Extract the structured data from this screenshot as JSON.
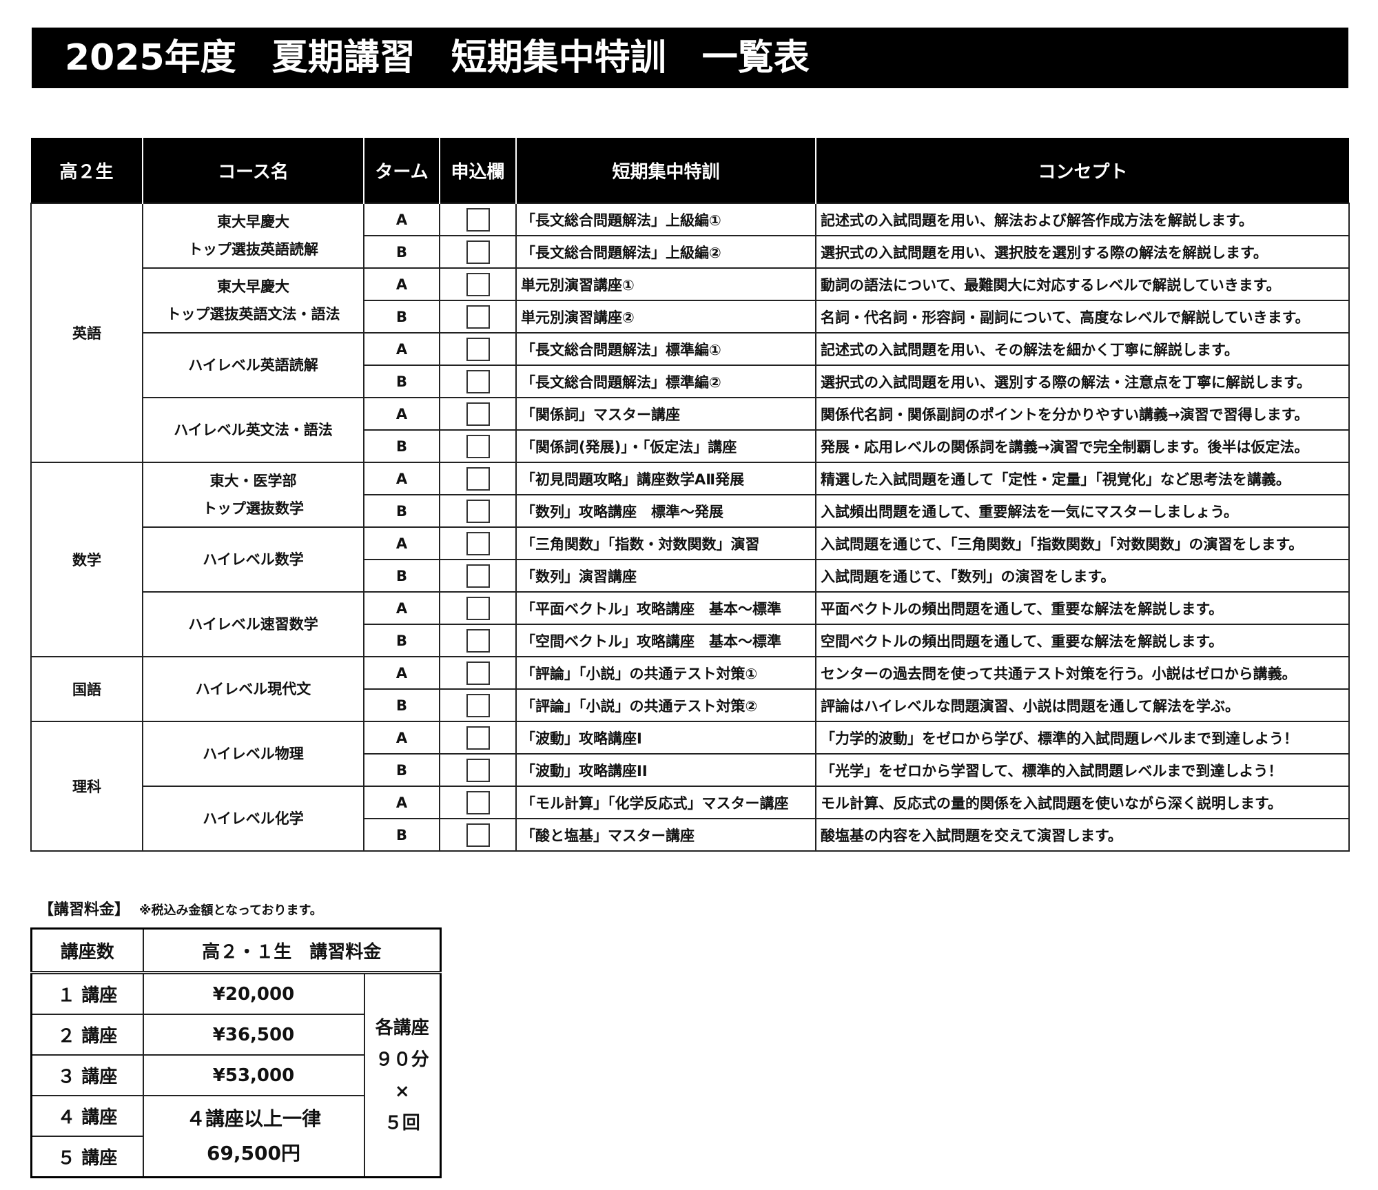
{
  "title": "2025年度　夏期講習　短期集中特訓　一覧表",
  "table": {
    "headers": [
      "高２生",
      "コース名",
      "ターム",
      "申込欄",
      "短期集中特訓",
      "コンセプト"
    ],
    "subjects": [
      {
        "name": "英語",
        "courses": [
          {
            "name": "東大早慶大\nトップ選抜英語読解",
            "terms": [
              {
                "term": "A",
                "lecture": "「長文総合問題解法」上級編①",
                "concept": "記述式の入試問題を用い、解法および解答作成方法を解説します。"
              },
              {
                "term": "B",
                "lecture": "「長文総合問題解法」上級編②",
                "concept": "選択式の入試問題を用い、選択肢を選別する際の解法を解説します。"
              }
            ]
          },
          {
            "name": "東大早慶大\nトップ選抜英語文法・語法",
            "terms": [
              {
                "term": "A",
                "lecture": " 単元別演習講座①",
                "concept": "動詞の語法について、最難関大に対応するレベルで解説していきます。"
              },
              {
                "term": "B",
                "lecture": " 単元別演習講座②",
                "concept": "名詞・代名詞・形容詞・副詞について、高度なレベルで解説していきます。"
              }
            ]
          },
          {
            "name": "ハイレベル英語読解",
            "terms": [
              {
                "term": "A",
                "lecture": "「長文総合問題解法」標準編①",
                "concept": "記述式の入試問題を用い、その解法を細かく丁寧に解説します。"
              },
              {
                "term": "B",
                "lecture": "「長文総合問題解法」標準編②",
                "concept": "選択式の入試問題を用い、選別する際の解法・注意点を丁寧に解説します。"
              }
            ]
          },
          {
            "name": "ハイレベル英文法・語法",
            "terms": [
              {
                "term": "A",
                "lecture": "「関係詞」マスター講座",
                "concept": "関係代名詞・関係副詞のポイントを分かりやすい講義→演習で習得します。"
              },
              {
                "term": "B",
                "lecture": "「関係詞(発展)」・「仮定法」講座",
                "concept": "発展・応用レベルの関係詞を講義→演習で完全制覇します。後半は仮定法。"
              }
            ]
          }
        ]
      },
      {
        "name": "数学",
        "courses": [
          {
            "name": "東大・医学部\nトップ選抜数学",
            "terms": [
              {
                "term": "A",
                "lecture": "「初見問題攻略」講座数学AⅡ発展",
                "concept": "精選した入試問題を通して「定性・定量」「視覚化」など思考法を講義。"
              },
              {
                "term": "B",
                "lecture": "「数列」攻略講座　標準～発展",
                "concept": "入試頻出問題を通して、重要解法を一気にマスターしましょう。"
              }
            ]
          },
          {
            "name": "ハイレベル数学",
            "terms": [
              {
                "term": "A",
                "lecture": "「三角関数」「指数・対数関数」演習",
                "concept": "入試問題を通じて、「三角関数」「指数関数」「対数関数」の演習をします。"
              },
              {
                "term": "B",
                "lecture": "「数列」演習講座",
                "concept": "入試問題を通じて、「数列」の演習をします。"
              }
            ]
          },
          {
            "name": "ハイレベル速習数学",
            "terms": [
              {
                "term": "A",
                "lecture": "「平面ベクトル」攻略講座　基本～標準",
                "concept": "平面ベクトルの頻出問題を通して、重要な解法を解説します。"
              },
              {
                "term": "B",
                "lecture": "「空間ベクトル」攻略講座　基本～標準",
                "concept": "空間ベクトルの頻出問題を通して、重要な解法を解説します。"
              }
            ]
          }
        ]
      },
      {
        "name": "国語",
        "courses": [
          {
            "name": "ハイレベル現代文",
            "terms": [
              {
                "term": "A",
                "lecture": "「評論」「小説」の共通テスト対策①",
                "concept": "センターの過去問を使って共通テスト対策を行う。小説はゼロから講義。"
              },
              {
                "term": "B",
                "lecture": "「評論」「小説」の共通テスト対策②",
                "concept": "評論はハイレベルな問題演習、小説は問題を通して解法を学ぶ。"
              }
            ]
          }
        ]
      },
      {
        "name": "理科",
        "courses": [
          {
            "name": "ハイレベル物理",
            "terms": [
              {
                "term": "A",
                "lecture": "「波動」攻略講座I",
                "concept": "「力学的波動」をゼロから学び、標準的入試問題レベルまで到達しよう！"
              },
              {
                "term": "B",
                "lecture": "「波動」攻略講座II",
                "concept": "「光学」をゼロから学習して、標準的入試問題レベルまで到達しよう！"
              }
            ]
          },
          {
            "name": "ハイレベル化学",
            "terms": [
              {
                "term": "A",
                "lecture": "「モル計算」「化学反応式」マスター講座",
                "concept": "モル計算、反応式の量的関係を入試問題を使いながら深く説明します。"
              },
              {
                "term": "B",
                "lecture": "「酸と塩基」マスター講座",
                "concept": "酸塩基の内容を入試問題を交えて演習します。"
              }
            ]
          }
        ]
      }
    ]
  },
  "fees": {
    "label": "【講習料金】",
    "note": "※税込み金額となっております。",
    "headers": [
      "講座数",
      "高２・１生　講習料金"
    ],
    "rows": [
      {
        "count": "１ 講座",
        "price": "¥20,000"
      },
      {
        "count": "２ 講座",
        "price": "¥36,500"
      },
      {
        "count": "３ 講座",
        "price": "¥53,000"
      },
      {
        "count": "４ 講座"
      },
      {
        "count": "５ 講座"
      }
    ],
    "flat_rate": "４講座以上一律\n69,500円",
    "duration": "各講座\n９０分\n×\n５回"
  }
}
